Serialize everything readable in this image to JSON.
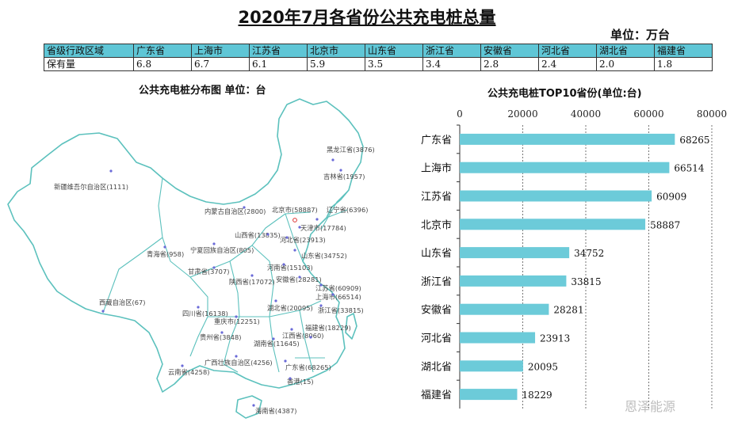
{
  "title": "2020年7月各省份公共充电桩总量",
  "unit_label": "单位：万台",
  "table": {
    "header_label": "省级行政区域",
    "row_label": "保有量",
    "provinces": [
      "广东省",
      "上海市",
      "江苏省",
      "北京市",
      "山东省",
      "浙江省",
      "安徽省",
      "河北省",
      "湖北省",
      "福建省"
    ],
    "values": [
      "6.8",
      "6.7",
      "6.1",
      "5.9",
      "3.5",
      "3.4",
      "2.8",
      "2.4",
      "2.0",
      "1.8"
    ]
  },
  "map": {
    "title": "公共充电桩分布图  单位：台",
    "labels": [
      {
        "text": "黑龙江省(3876)"
      },
      {
        "text": "吉林省(1957)"
      },
      {
        "text": "新疆维吾尔自治区(1111)"
      },
      {
        "text": "内蒙古自治区(2800)"
      },
      {
        "text": "北京市(58887)"
      },
      {
        "text": "辽宁省(6396)"
      },
      {
        "text": "天津市(17784)"
      },
      {
        "text": "山西省(13835)"
      },
      {
        "text": "河北省(23913)"
      },
      {
        "text": "宁夏回族自治区(805)"
      },
      {
        "text": "青海省(958)"
      },
      {
        "text": "山东省(34752)"
      },
      {
        "text": "甘肃省(3707)"
      },
      {
        "text": "河南省(15103)"
      },
      {
        "text": "陕西省(17072)"
      },
      {
        "text": "安徽省(28281)"
      },
      {
        "text": "江苏省(60909)"
      },
      {
        "text": "上海市(66514)"
      },
      {
        "text": "西藏自治区(67)"
      },
      {
        "text": "湖北省(20095)"
      },
      {
        "text": "浙江省(33815)"
      },
      {
        "text": "四川省(16138)"
      },
      {
        "text": "重庆市(12251)"
      },
      {
        "text": "福建省(18229)"
      },
      {
        "text": "贵州省(3848)"
      },
      {
        "text": "江西省(8060)"
      },
      {
        "text": "湖南省(11645)"
      },
      {
        "text": "广西壮族自治区(4256)"
      },
      {
        "text": "广东省(68265)"
      },
      {
        "text": "云南省(4258)"
      },
      {
        "text": "香港(15)"
      },
      {
        "text": "海南省(4387)"
      }
    ]
  },
  "chart_data": {
    "type": "bar",
    "orientation": "horizontal",
    "title": "公共充电桩TOP10省份(单位:台)",
    "categories": [
      "广东省",
      "上海市",
      "江苏省",
      "北京市",
      "山东省",
      "浙江省",
      "安徽省",
      "河北省",
      "湖北省",
      "福建省"
    ],
    "values": [
      68265,
      66514,
      60909,
      58887,
      34752,
      33815,
      28281,
      23913,
      20095,
      18229
    ],
    "xlim": [
      0,
      80000
    ],
    "xticks": [
      0,
      20000,
      40000,
      60000,
      80000
    ],
    "grid": true,
    "bar_color": "#6ccbd9"
  },
  "watermark": "恩泽能源"
}
